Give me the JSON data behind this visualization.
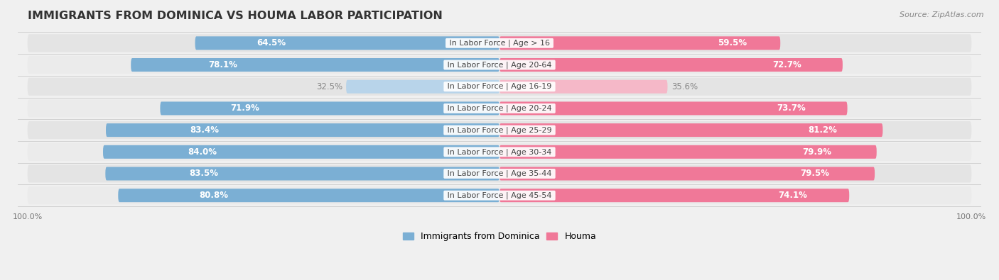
{
  "title": "IMMIGRANTS FROM DOMINICA VS HOUMA LABOR PARTICIPATION",
  "source": "Source: ZipAtlas.com",
  "categories": [
    "In Labor Force | Age > 16",
    "In Labor Force | Age 20-64",
    "In Labor Force | Age 16-19",
    "In Labor Force | Age 20-24",
    "In Labor Force | Age 25-29",
    "In Labor Force | Age 30-34",
    "In Labor Force | Age 35-44",
    "In Labor Force | Age 45-54"
  ],
  "dominica_values": [
    64.5,
    78.1,
    32.5,
    71.9,
    83.4,
    84.0,
    83.5,
    80.8
  ],
  "houma_values": [
    59.5,
    72.7,
    35.6,
    73.7,
    81.2,
    79.9,
    79.5,
    74.1
  ],
  "dominica_color": "#7bafd4",
  "dominica_color_light": "#b8d4ea",
  "houma_color": "#f07898",
  "houma_color_light": "#f5b8c8",
  "label_color_white": "#ffffff",
  "label_color_dark": "#888888",
  "bg_color": "#f0f0f0",
  "row_bg_color": "#e8e8e8",
  "bar_container_color": "#f8f8f8",
  "max_val": 100.0,
  "bar_height": 0.62,
  "title_fontsize": 11.5,
  "label_fontsize": 8.5,
  "category_fontsize": 8.0,
  "tick_fontsize": 8.0,
  "legend_fontsize": 9.0
}
